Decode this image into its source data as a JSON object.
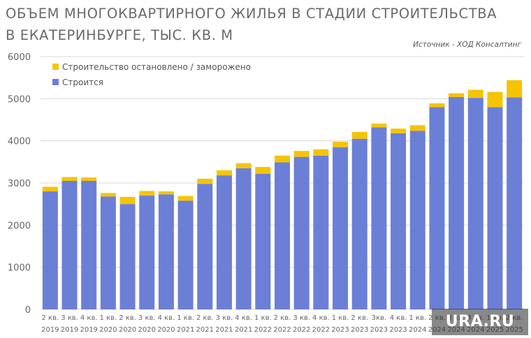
{
  "chart_data": {
    "type": "bar",
    "stacked": true,
    "title": "ОБЪЕМ МНОГОКВАРТИРНОГО ЖИЛЬЯ В СТАДИИ СТРОИТЕЛЬСТВА В ЕКАТЕРИНБУРГЕ, ТЫС. КВ. М",
    "source": "Источник - ХОД Консалтинг",
    "ylim": [
      0,
      6000
    ],
    "yticks": [
      "0",
      "1000",
      "2000",
      "3000",
      "4000",
      "5000",
      "6000"
    ],
    "grid": true,
    "legend_position": "top-left",
    "categories": [
      [
        "2 кв.",
        "2019"
      ],
      [
        "3 кв.",
        "2019"
      ],
      [
        "4 кв.",
        "2019"
      ],
      [
        "1 кв.",
        "2020"
      ],
      [
        "2 кв.",
        "2020"
      ],
      [
        "3 кв.",
        "2020"
      ],
      [
        "4 кв.",
        "2020"
      ],
      [
        "1 кв.",
        "2021"
      ],
      [
        "2 кв.",
        "2021"
      ],
      [
        "3 кв.",
        "2021"
      ],
      [
        "4 кв.",
        "2021"
      ],
      [
        "1 кв.",
        "2022"
      ],
      [
        "2 кв.",
        "2022"
      ],
      [
        "3 кв.",
        "2022"
      ],
      [
        "4 кв.",
        "2022"
      ],
      [
        "1 кв.",
        "2023"
      ],
      [
        "2 кв.",
        "2023"
      ],
      [
        "3кв.",
        "2023"
      ],
      [
        "4 кв.",
        "2023"
      ],
      [
        "1 кв.",
        "2024"
      ],
      [
        "2 кв.",
        "2024"
      ],
      [
        "3 кв.",
        "2024"
      ],
      [
        "4 кв.",
        "2024"
      ],
      [
        "1 кв.",
        "2025"
      ],
      [
        "2 кв.",
        "2025"
      ]
    ],
    "series": [
      {
        "name": "Строится",
        "color": "#6b7fd7",
        "values": [
          2800,
          3050,
          3050,
          2680,
          2500,
          2700,
          2730,
          2580,
          2980,
          3180,
          3350,
          3220,
          3490,
          3620,
          3650,
          3850,
          4050,
          4320,
          4180,
          4240,
          4800,
          5040,
          5020,
          4800,
          5030
        ]
      },
      {
        "name": "Строительство остановлено / заморожено",
        "color": "#f5c400",
        "values": [
          110,
          90,
          80,
          80,
          170,
          110,
          70,
          110,
          120,
          120,
          120,
          160,
          160,
          140,
          150,
          130,
          160,
          90,
          110,
          130,
          90,
          90,
          190,
          360,
          410
        ]
      }
    ]
  },
  "watermark": "URA.RU"
}
